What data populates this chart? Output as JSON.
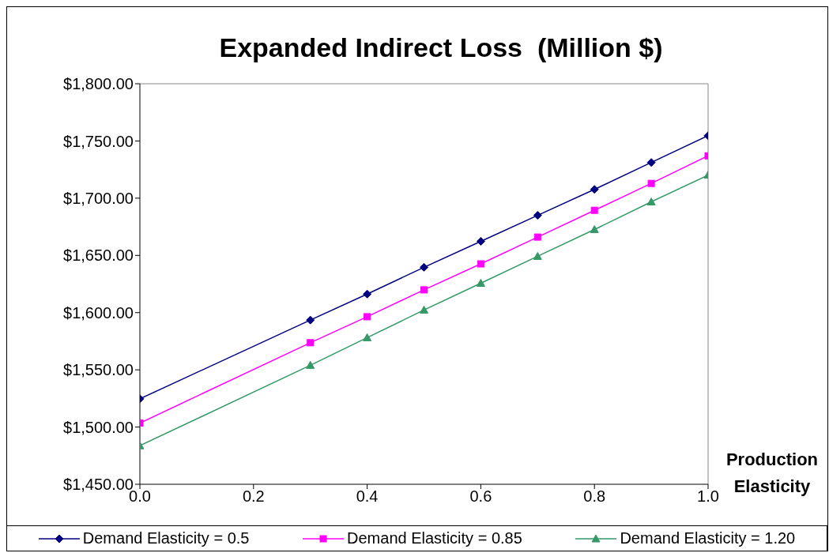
{
  "chart_data": {
    "type": "line",
    "title": "Expanded Indirect Loss  (Million $)",
    "xlabel": "Production Elasticity",
    "x": [
      0,
      0.3,
      0.4,
      0.5,
      0.6,
      0.7,
      0.8,
      0.9,
      1.0
    ],
    "series": [
      {
        "name": "Demand Elasticity = 0.5",
        "color": "#000080",
        "marker": "diamond",
        "values": [
          1524.7,
          1593.5,
          1616.2,
          1639.6,
          1662.3,
          1685,
          1707.7,
          1731.2,
          1754.6
        ]
      },
      {
        "name": "Demand Elasticity = 0.85",
        "color": "#ff00ff",
        "marker": "square",
        "values": [
          1503.5,
          1573.7,
          1596.4,
          1619.9,
          1642.6,
          1666,
          1689.4,
          1712.9,
          1737
        ]
      },
      {
        "name": "Demand Elasticity = 1.20",
        "color": "#339966",
        "marker": "triangle",
        "values": [
          1483.7,
          1554,
          1578.1,
          1602.3,
          1625.7,
          1649.2,
          1672.6,
          1696.8,
          1720.2
        ]
      }
    ],
    "xlim": [
      0,
      1
    ],
    "xticks": [
      {
        "value": 0,
        "label": "0.0"
      },
      {
        "value": 0.2,
        "label": "0.2"
      },
      {
        "value": 0.4,
        "label": "0.4"
      },
      {
        "value": 0.6,
        "label": "0.6"
      },
      {
        "value": 0.8,
        "label": "0.8"
      },
      {
        "value": 1,
        "label": "1.0"
      }
    ],
    "ylim": [
      1450,
      1800
    ],
    "yticks": [
      {
        "value": 1450,
        "label": "$1,450.00"
      },
      {
        "value": 1500,
        "label": "$1,500.00"
      },
      {
        "value": 1550,
        "label": "$1,550.00"
      },
      {
        "value": 1600,
        "label": "$1,600.00"
      },
      {
        "value": 1650,
        "label": "$1,650.00"
      },
      {
        "value": 1700,
        "label": "$1,700.00"
      },
      {
        "value": 1750,
        "label": "$1,750.00"
      },
      {
        "value": 1800,
        "label": "$1,800.00"
      }
    ],
    "grid": false,
    "legend": "bottom",
    "line_style": "solid"
  }
}
